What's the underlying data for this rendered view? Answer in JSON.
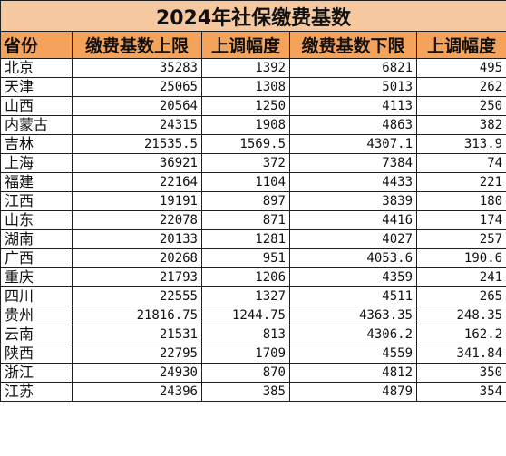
{
  "title": "2024年社保缴费基数",
  "columns": [
    "省份",
    "缴费基数上限",
    "上调幅度",
    "缴费基数下限",
    "上调幅度"
  ],
  "rows": [
    [
      "北京",
      "35283",
      "1392",
      "6821",
      "495"
    ],
    [
      "天津",
      "25065",
      "1308",
      "5013",
      "262"
    ],
    [
      "山西",
      "20564",
      "1250",
      "4113",
      "250"
    ],
    [
      "内蒙古",
      "24315",
      "1908",
      "4863",
      "382"
    ],
    [
      "吉林",
      "21535.5",
      "1569.5",
      "4307.1",
      "313.9"
    ],
    [
      "上海",
      "36921",
      "372",
      "7384",
      "74"
    ],
    [
      "福建",
      "22164",
      "1104",
      "4433",
      "221"
    ],
    [
      "江西",
      "19191",
      "897",
      "3839",
      "180"
    ],
    [
      "山东",
      "22078",
      "871",
      "4416",
      "174"
    ],
    [
      "湖南",
      "20133",
      "1281",
      "4027",
      "257"
    ],
    [
      "广西",
      "20268",
      "951",
      "4053.6",
      "190.6"
    ],
    [
      "重庆",
      "21793",
      "1206",
      "4359",
      "241"
    ],
    [
      "四川",
      "22555",
      "1327",
      "4511",
      "265"
    ],
    [
      "贵州",
      "21816.75",
      "1244.75",
      "4363.35",
      "248.35"
    ],
    [
      "云南",
      "21531",
      "813",
      "4306.2",
      "162.2"
    ],
    [
      "陕西",
      "22795",
      "1709",
      "4559",
      "341.84"
    ],
    [
      "浙江",
      "24930",
      "870",
      "4812",
      "350"
    ],
    [
      "江苏",
      "24396",
      "385",
      "4879",
      "354"
    ]
  ],
  "colors": {
    "title_bg": "#f5c89f",
    "header_bg": "#f5a25a",
    "border": "#1f1f1f",
    "text": "#111111"
  }
}
